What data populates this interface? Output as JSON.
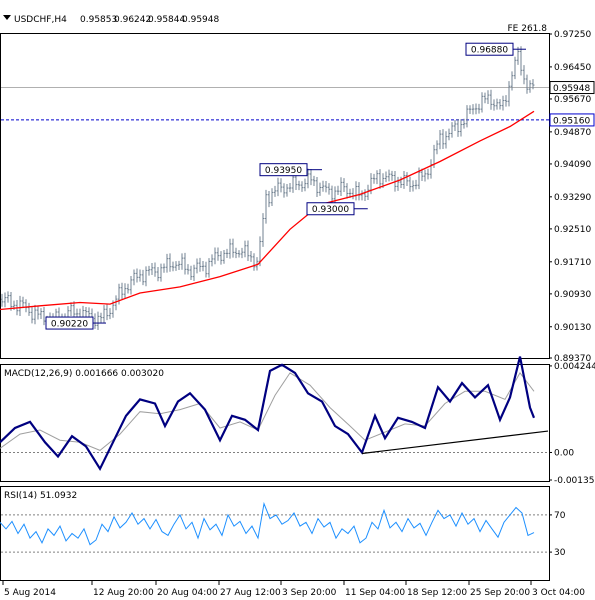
{
  "header": {
    "symbol": "USDCHF,H4",
    "ohlc": [
      "0.95853",
      "0.96242",
      "0.95844",
      "0.95948"
    ],
    "fibo_label": "FE 261.8"
  },
  "colors": {
    "candles": "#708090",
    "ma": "#ff0000",
    "macd": "#000080",
    "macd_signal": "#a0a0a0",
    "rsi": "#1e90ff",
    "label_box": "#000080",
    "support_level": "#0000cd",
    "trendline": "#000000",
    "grid": "#808080"
  },
  "chart_data": [
    {
      "type": "candlestick",
      "name": "price",
      "ylim": [
        0.8937,
        0.9725
      ],
      "y_ticks": [
        "0.97250",
        "0.96450",
        "0.95670",
        "0.94870",
        "0.94090",
        "0.93290",
        "0.92510",
        "0.91710",
        "0.90930",
        "0.90130",
        "0.89370"
      ],
      "y_tick_values": [
        0.9725,
        0.9645,
        0.9567,
        0.9487,
        0.9409,
        0.9329,
        0.9251,
        0.9171,
        0.9093,
        0.9013,
        0.8937
      ],
      "current_price": 0.95948,
      "current_price_label": "0.95948",
      "support_level": 0.9516,
      "support_label": "0.95160",
      "annotations": [
        {
          "label": "0.96880",
          "value": 0.9688
        },
        {
          "label": "0.93950",
          "value": 0.9395
        },
        {
          "label": "0.93000",
          "value": 0.93
        },
        {
          "label": "0.90220",
          "value": 0.9022
        }
      ],
      "close_path": [
        [
          0,
          0.908
        ],
        [
          25,
          0.906
        ],
        [
          37,
          0.904
        ],
        [
          55,
          0.903
        ],
        [
          72,
          0.905
        ],
        [
          88,
          0.904
        ],
        [
          100,
          0.903
        ],
        [
          108,
          0.905
        ],
        [
          125,
          0.911
        ],
        [
          140,
          0.914
        ],
        [
          158,
          0.915
        ],
        [
          175,
          0.917
        ],
        [
          190,
          0.915
        ],
        [
          205,
          0.916
        ],
        [
          220,
          0.919
        ],
        [
          240,
          0.92
        ],
        [
          258,
          0.917
        ],
        [
          266,
          0.933
        ],
        [
          280,
          0.935
        ],
        [
          298,
          0.936
        ],
        [
          310,
          0.937
        ],
        [
          328,
          0.934
        ],
        [
          345,
          0.935
        ],
        [
          360,
          0.933
        ],
        [
          378,
          0.938
        ],
        [
          395,
          0.937
        ],
        [
          410,
          0.936
        ],
        [
          425,
          0.938
        ],
        [
          440,
          0.947
        ],
        [
          458,
          0.95
        ],
        [
          475,
          0.955
        ],
        [
          490,
          0.957
        ],
        [
          502,
          0.954
        ],
        [
          512,
          0.963
        ],
        [
          518,
          0.967
        ],
        [
          524,
          0.962
        ],
        [
          530,
          0.959
        ],
        [
          534,
          0.9595
        ]
      ],
      "ma_path": [
        [
          0,
          0.9055
        ],
        [
          40,
          0.9064
        ],
        [
          80,
          0.9072
        ],
        [
          110,
          0.9068
        ],
        [
          140,
          0.9095
        ],
        [
          180,
          0.911
        ],
        [
          220,
          0.9135
        ],
        [
          258,
          0.9165
        ],
        [
          290,
          0.925
        ],
        [
          320,
          0.931
        ],
        [
          360,
          0.9335
        ],
        [
          400,
          0.937
        ],
        [
          440,
          0.9415
        ],
        [
          480,
          0.9465
        ],
        [
          510,
          0.95
        ],
        [
          534,
          0.9537
        ]
      ]
    },
    {
      "type": "line",
      "name": "macd",
      "title": "MACD(12,26,9) 0.001666 0.003020",
      "ylim": [
        -0.00135,
        0.00424
      ],
      "y_ticks": [
        "0.004244",
        "0.00",
        "-0.00135"
      ],
      "y_tick_values": [
        0.004244,
        0.0,
        -0.00135
      ],
      "macd_path": [
        [
          0,
          0.0005
        ],
        [
          15,
          0.0012
        ],
        [
          30,
          0.0015
        ],
        [
          45,
          0.0005
        ],
        [
          58,
          -0.0002
        ],
        [
          72,
          0.0008
        ],
        [
          86,
          0.0003
        ],
        [
          100,
          -0.0008
        ],
        [
          112,
          0.0004
        ],
        [
          126,
          0.0018
        ],
        [
          140,
          0.0026
        ],
        [
          155,
          0.0024
        ],
        [
          165,
          0.0013
        ],
        [
          178,
          0.0025
        ],
        [
          190,
          0.0029
        ],
        [
          205,
          0.0021
        ],
        [
          220,
          0.0006
        ],
        [
          232,
          0.0018
        ],
        [
          245,
          0.0016
        ],
        [
          258,
          0.0011
        ],
        [
          270,
          0.004
        ],
        [
          282,
          0.0043
        ],
        [
          295,
          0.0039
        ],
        [
          308,
          0.0029
        ],
        [
          322,
          0.0025
        ],
        [
          335,
          0.0013
        ],
        [
          348,
          0.0009
        ],
        [
          362,
          0.0
        ],
        [
          375,
          0.0018
        ],
        [
          385,
          0.0007
        ],
        [
          398,
          0.0017
        ],
        [
          412,
          0.0015
        ],
        [
          425,
          0.0012
        ],
        [
          438,
          0.0032
        ],
        [
          450,
          0.0025
        ],
        [
          462,
          0.0034
        ],
        [
          475,
          0.0027
        ],
        [
          488,
          0.0033
        ],
        [
          500,
          0.0016
        ],
        [
          510,
          0.0027
        ],
        [
          520,
          0.0047
        ],
        [
          530,
          0.0022
        ],
        [
          534,
          0.0017
        ]
      ],
      "signal_path": [
        [
          0,
          0.0002
        ],
        [
          20,
          0.0009
        ],
        [
          40,
          0.0011
        ],
        [
          60,
          0.0006
        ],
        [
          80,
          0.0005
        ],
        [
          100,
          0.0001
        ],
        [
          120,
          0.0009
        ],
        [
          140,
          0.002
        ],
        [
          160,
          0.0019
        ],
        [
          180,
          0.0021
        ],
        [
          200,
          0.0024
        ],
        [
          220,
          0.0012
        ],
        [
          240,
          0.0015
        ],
        [
          258,
          0.0011
        ],
        [
          275,
          0.0028
        ],
        [
          290,
          0.0039
        ],
        [
          310,
          0.0033
        ],
        [
          330,
          0.0022
        ],
        [
          350,
          0.0013
        ],
        [
          365,
          0.0006
        ],
        [
          385,
          0.001
        ],
        [
          405,
          0.0014
        ],
        [
          425,
          0.0013
        ],
        [
          445,
          0.0024
        ],
        [
          465,
          0.003
        ],
        [
          485,
          0.003
        ],
        [
          505,
          0.0026
        ],
        [
          520,
          0.0039
        ],
        [
          534,
          0.003
        ]
      ],
      "trendline": [
        [
          362,
          -5e-05
        ],
        [
          548,
          0.00105
        ]
      ]
    },
    {
      "type": "line",
      "name": "rsi",
      "title": "RSI(14) 51.0932",
      "ylim": [
        0,
        100
      ],
      "y_ticks": [
        "70",
        "30"
      ],
      "y_tick_values": [
        70,
        30
      ],
      "levels": [
        70,
        30
      ],
      "rsi_path": [
        [
          0,
          62
        ],
        [
          6,
          55
        ],
        [
          12,
          63
        ],
        [
          18,
          50
        ],
        [
          24,
          60
        ],
        [
          30,
          45
        ],
        [
          36,
          52
        ],
        [
          42,
          40
        ],
        [
          48,
          55
        ],
        [
          54,
          48
        ],
        [
          60,
          58
        ],
        [
          66,
          42
        ],
        [
          72,
          50
        ],
        [
          78,
          45
        ],
        [
          84,
          55
        ],
        [
          90,
          38
        ],
        [
          96,
          43
        ],
        [
          102,
          60
        ],
        [
          108,
          52
        ],
        [
          114,
          68
        ],
        [
          120,
          56
        ],
        [
          126,
          62
        ],
        [
          132,
          72
        ],
        [
          138,
          60
        ],
        [
          144,
          66
        ],
        [
          150,
          55
        ],
        [
          156,
          65
        ],
        [
          162,
          52
        ],
        [
          168,
          48
        ],
        [
          174,
          60
        ],
        [
          180,
          70
        ],
        [
          186,
          55
        ],
        [
          192,
          62
        ],
        [
          198,
          45
        ],
        [
          204,
          66
        ],
        [
          210,
          54
        ],
        [
          216,
          60
        ],
        [
          222,
          48
        ],
        [
          228,
          70
        ],
        [
          234,
          58
        ],
        [
          240,
          63
        ],
        [
          246,
          50
        ],
        [
          252,
          58
        ],
        [
          258,
          45
        ],
        [
          264,
          82
        ],
        [
          270,
          66
        ],
        [
          276,
          70
        ],
        [
          282,
          60
        ],
        [
          288,
          64
        ],
        [
          294,
          72
        ],
        [
          300,
          58
        ],
        [
          306,
          62
        ],
        [
          312,
          50
        ],
        [
          318,
          66
        ],
        [
          324,
          57
        ],
        [
          330,
          62
        ],
        [
          336,
          45
        ],
        [
          342,
          55
        ],
        [
          348,
          50
        ],
        [
          354,
          58
        ],
        [
          360,
          40
        ],
        [
          366,
          45
        ],
        [
          372,
          62
        ],
        [
          378,
          55
        ],
        [
          384,
          75
        ],
        [
          390,
          56
        ],
        [
          396,
          62
        ],
        [
          402,
          52
        ],
        [
          408,
          66
        ],
        [
          414,
          56
        ],
        [
          420,
          61
        ],
        [
          426,
          48
        ],
        [
          432,
          62
        ],
        [
          438,
          75
        ],
        [
          444,
          66
        ],
        [
          450,
          70
        ],
        [
          456,
          58
        ],
        [
          462,
          72
        ],
        [
          468,
          60
        ],
        [
          474,
          66
        ],
        [
          480,
          52
        ],
        [
          486,
          64
        ],
        [
          492,
          55
        ],
        [
          498,
          46
        ],
        [
          504,
          62
        ],
        [
          510,
          70
        ],
        [
          516,
          78
        ],
        [
          522,
          72
        ],
        [
          528,
          48
        ],
        [
          534,
          51
        ]
      ]
    }
  ],
  "time_axis": {
    "labels": [
      "5 Aug 2014",
      "12 Aug 20:00",
      "20 Aug 04:00",
      "27 Aug 12:00",
      "3 Sep 20:00",
      "11 Sep 04:00",
      "18 Sep 12:00",
      "25 Sep 20:00",
      "3 Oct 04:00"
    ],
    "label_positions": [
      3,
      92,
      156,
      219,
      281,
      344,
      406,
      469,
      531
    ]
  }
}
